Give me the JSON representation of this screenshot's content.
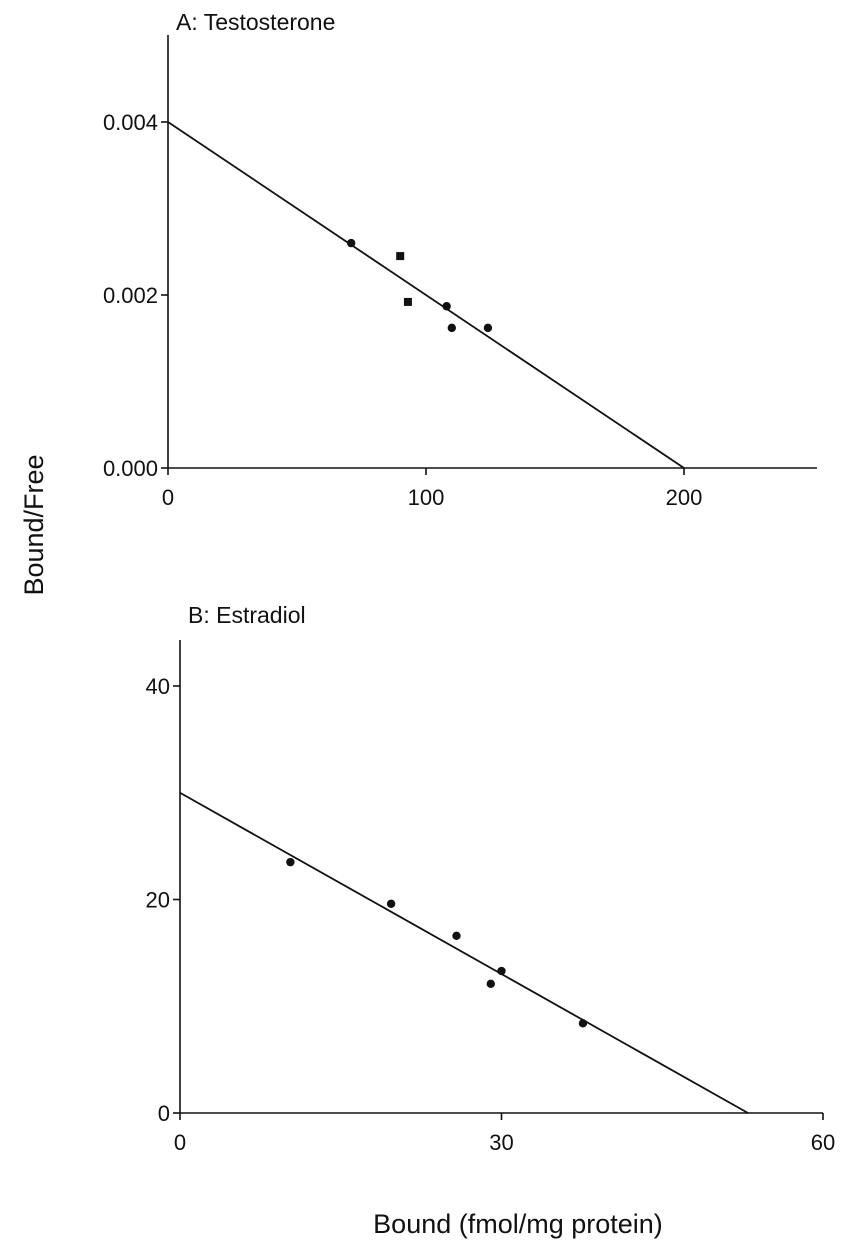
{
  "figure": {
    "ylabel": "Bound/Free",
    "xlabel": "Bound (fmol/mg protein)"
  },
  "chart_data": [
    {
      "type": "scatter",
      "title": "A: Testosterone",
      "xlabel": "Bound (fmol/mg protein)",
      "ylabel": "Bound/Free",
      "xlim": [
        0,
        250
      ],
      "ylim": [
        0,
        0.005
      ],
      "xticks": [
        0,
        100,
        200
      ],
      "xtick_labels": [
        "0",
        "100",
        "200"
      ],
      "yticks": [
        0,
        0.002,
        0.004
      ],
      "ytick_labels": [
        "0.000",
        "0.002",
        "0.004"
      ],
      "points": [
        {
          "x": 71,
          "y": 0.0026,
          "marker": "circle"
        },
        {
          "x": 90,
          "y": 0.00245,
          "marker": "square"
        },
        {
          "x": 93,
          "y": 0.00192,
          "marker": "square"
        },
        {
          "x": 108,
          "y": 0.00187,
          "marker": "circle"
        },
        {
          "x": 110,
          "y": 0.00162,
          "marker": "circle"
        },
        {
          "x": 124,
          "y": 0.00162,
          "marker": "circle"
        }
      ],
      "fit_line": {
        "x": [
          0,
          200
        ],
        "y": [
          0.004,
          0
        ]
      },
      "grid": false
    },
    {
      "type": "scatter",
      "title": "B: Estradiol",
      "xlabel": "Bound (fmol/mg protein)",
      "ylabel": "Bound/Free",
      "xlim": [
        0,
        60
      ],
      "ylim": [
        0,
        40
      ],
      "xticks": [
        0,
        30,
        60
      ],
      "xtick_labels": [
        "0",
        "30",
        "60"
      ],
      "yticks": [
        0,
        20,
        40
      ],
      "ytick_labels": [
        "0",
        "20",
        "40"
      ],
      "points": [
        {
          "x": 10.3,
          "y": 23.5,
          "marker": "circle"
        },
        {
          "x": 19.7,
          "y": 19.6,
          "marker": "circle"
        },
        {
          "x": 25.8,
          "y": 16.6,
          "marker": "circle"
        },
        {
          "x": 29.0,
          "y": 12.1,
          "marker": "circle"
        },
        {
          "x": 30.0,
          "y": 13.3,
          "marker": "circle"
        },
        {
          "x": 37.6,
          "y": 8.4,
          "marker": "circle"
        }
      ],
      "fit_line": {
        "x": [
          0,
          53
        ],
        "y": [
          30,
          0
        ]
      },
      "grid": false
    }
  ]
}
